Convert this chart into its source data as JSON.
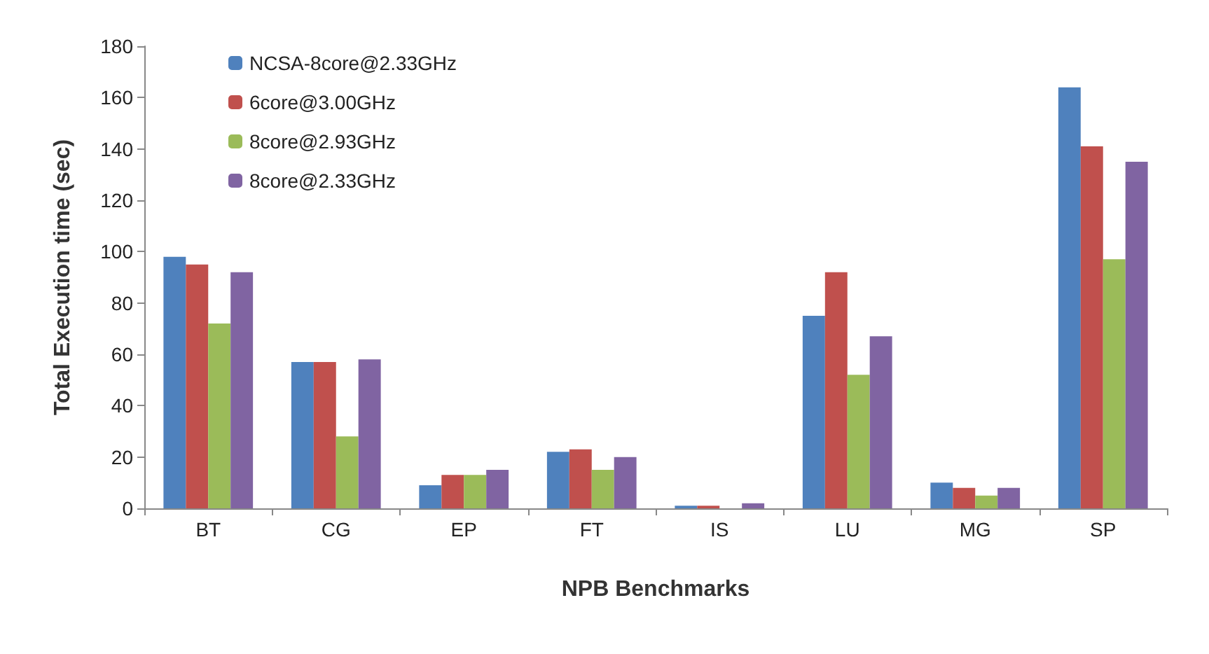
{
  "chart_data": {
    "type": "bar",
    "xlabel": "NPB Benchmarks",
    "ylabel": "Total Execution time (sec)",
    "categories": [
      "BT",
      "CG",
      "EP",
      "FT",
      "IS",
      "LU",
      "MG",
      "SP"
    ],
    "series": [
      {
        "name": "NCSA-8core@2.33GHz",
        "color": "#4f81bd",
        "values": [
          98,
          57,
          9,
          22,
          1,
          75,
          10,
          164
        ]
      },
      {
        "name": "6core@3.00GHz",
        "color": "#c0504d",
        "values": [
          95,
          57,
          13,
          23,
          1,
          92,
          8,
          141
        ]
      },
      {
        "name": "8core@2.93GHz",
        "color": "#9bbb59",
        "values": [
          72,
          28,
          13,
          15,
          null,
          52,
          5,
          97
        ]
      },
      {
        "name": "8core@2.33GHz",
        "color": "#8064a2",
        "values": [
          92,
          58,
          15,
          20,
          2,
          67,
          8,
          135
        ]
      }
    ],
    "ylim": [
      0,
      180
    ],
    "yticks": [
      0,
      20,
      40,
      60,
      80,
      100,
      120,
      140,
      160,
      180
    ],
    "grid": false,
    "legend": "top left"
  }
}
